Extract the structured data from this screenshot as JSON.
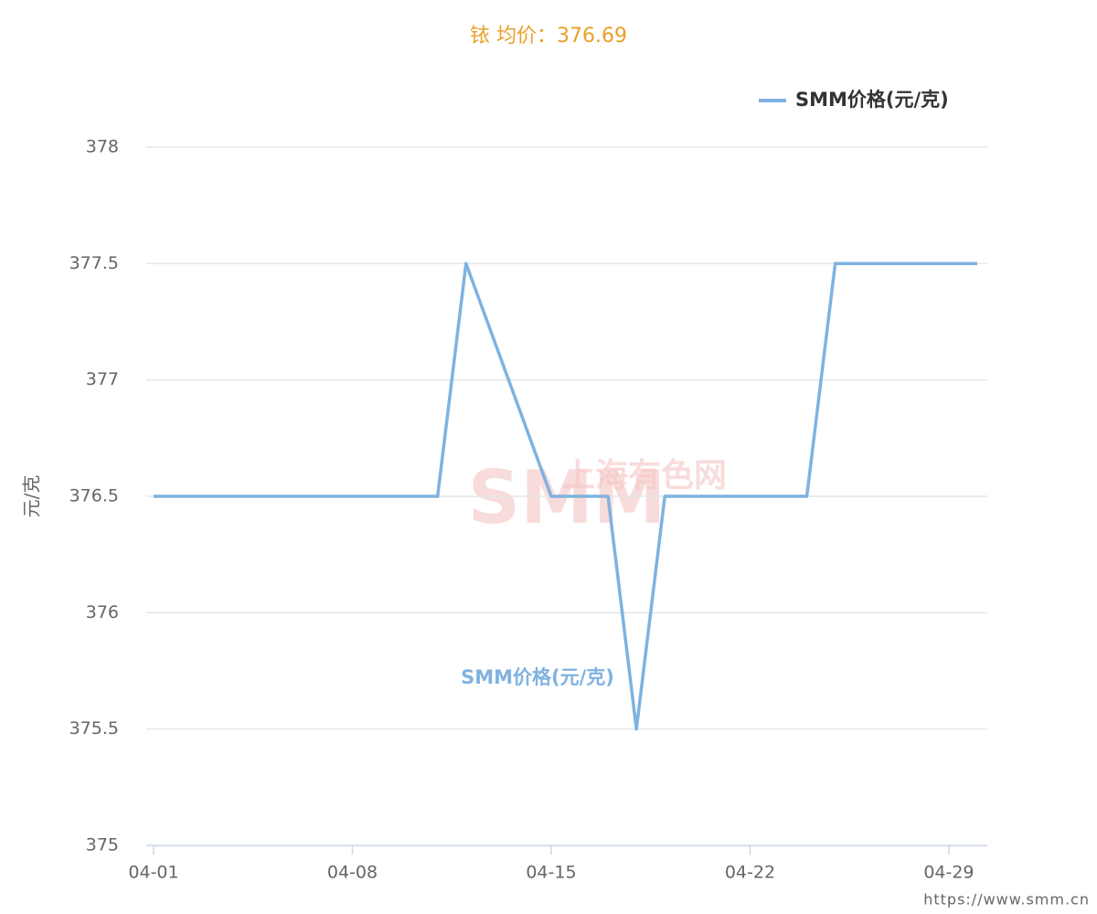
{
  "chart_data": {
    "type": "line",
    "title": "铱 均价：376.69",
    "y_label": "元/克",
    "x": [
      "04-01",
      "04-11",
      "04-12",
      "04-15",
      "04-17",
      "04-18",
      "04-19",
      "04-24",
      "04-25",
      "04-30"
    ],
    "series": [
      {
        "name": "SMM价格(元/克)",
        "color": "#7fb2e0",
        "values": [
          376.5,
          376.5,
          377.5,
          376.5,
          376.5,
          375.5,
          376.5,
          376.5,
          377.5,
          377.5
        ]
      }
    ],
    "xticks": [
      "04-01",
      "04-08",
      "04-15",
      "04-22",
      "04-29"
    ],
    "ylim": [
      375,
      378
    ],
    "yticks": [
      375,
      375.5,
      376,
      376.5,
      377,
      377.5,
      378
    ],
    "grid": true,
    "legend": "top-right",
    "annotation": "SMM价格(元/克)",
    "watermark": {
      "logo": "SMM",
      "name": "上海有色网"
    },
    "footer": "https://www.smm.cn"
  }
}
